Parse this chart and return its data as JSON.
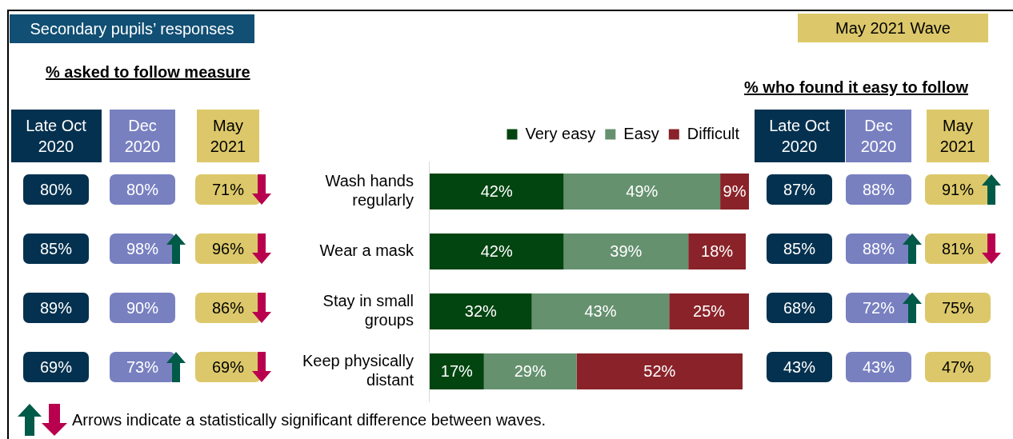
{
  "chart_data": [
    {
      "type": "heatmap",
      "title": "Secondary pupils’ responses",
      "subtitle": "% asked to follow measure",
      "categories": [
        "Late Oct 2020",
        "Dec 2020",
        "May 2021"
      ],
      "y_categories": [
        null,
        null,
        null,
        null
      ],
      "colors": [
        "#04314f",
        "#7880c0",
        "#dcc86a"
      ],
      "cells": [
        [
          80,
          80,
          71
        ],
        [
          85,
          98,
          96
        ],
        [
          89,
          90,
          86
        ],
        [
          69,
          73,
          69
        ]
      ],
      "cell_labels": [
        [
          "80%",
          "80%",
          "71%"
        ],
        [
          "85%",
          "98%",
          "96%"
        ],
        [
          "89%",
          "90%",
          "86%"
        ],
        [
          "69%",
          "73%",
          "69%"
        ]
      ]
    },
    {
      "type": "bar",
      "orientation": "horizontal",
      "stacked": true,
      "legend": "top",
      "data_labels": true,
      "categories": [
        "Wash hands regularly",
        "Wear a mask",
        "Stay in small groups",
        "Keep physically distant"
      ],
      "series": [
        {
          "name": "Very easy",
          "color": "#024510",
          "values": [
            42,
            42,
            32,
            17
          ],
          "value_labels": [
            "42%",
            "42%",
            "32%",
            "17%"
          ]
        },
        {
          "name": "Easy",
          "color": "#65916f",
          "values": [
            49,
            39,
            43,
            29
          ],
          "value_labels": [
            "49%",
            "39%",
            "43%",
            "29%"
          ]
        },
        {
          "name": "Difficult",
          "color": "#8a2329",
          "values": [
            9,
            18,
            25,
            52
          ],
          "value_labels": [
            "9%",
            "18%",
            "25%",
            "52%"
          ]
        }
      ],
      "annotations": [
        "Arrows indicate a statistically significant difference between waves."
      ]
    },
    {
      "type": "heatmap",
      "title": "May 2021 Wave",
      "subtitle": "% who found it easy to follow",
      "categories": [
        "Late Oct 2020",
        "Dec 2020",
        "May 2021"
      ],
      "y_categories": [
        null,
        null,
        null,
        null
      ],
      "colors": [
        "#04314f",
        "#7880c0",
        "#dcc86a"
      ],
      "cells": [
        [
          87,
          88,
          91
        ],
        [
          85,
          88,
          81
        ],
        [
          68,
          72,
          75
        ],
        [
          43,
          43,
          47
        ]
      ],
      "cell_labels": [
        [
          "87%",
          "88%",
          "91%"
        ],
        [
          "85%",
          "88%",
          "81%"
        ],
        [
          "68%",
          "72%",
          "75%"
        ],
        [
          "43%",
          "43%",
          "47%"
        ]
      ]
    }
  ]
}
